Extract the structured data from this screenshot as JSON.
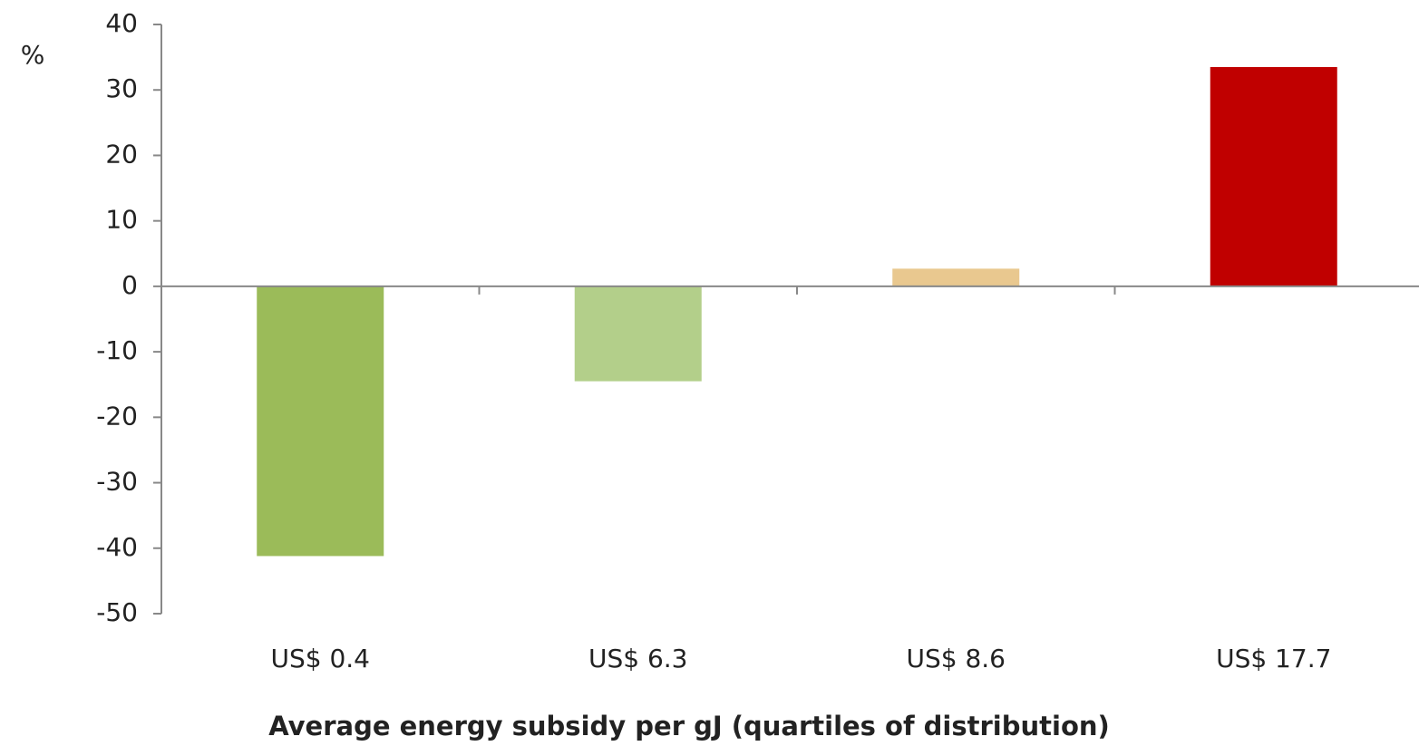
{
  "chart_data": {
    "type": "bar",
    "y_label": "%",
    "x_label": "Average energy subsidy per gJ (quartiles of distribution)",
    "categories": [
      "US$ 0.4",
      "US$ 6.3",
      "US$ 8.6",
      "US$ 17.7"
    ],
    "values": [
      -41.2,
      -14.5,
      2.7,
      33.5
    ],
    "colors": [
      "#9bbb59",
      "#b3cf8a",
      "#e9c88f",
      "#c00000"
    ],
    "ylim": [
      -50,
      40
    ],
    "yticks": [
      -50,
      -40,
      -30,
      -20,
      -10,
      0,
      10,
      20,
      30,
      40
    ],
    "grid": false
  }
}
